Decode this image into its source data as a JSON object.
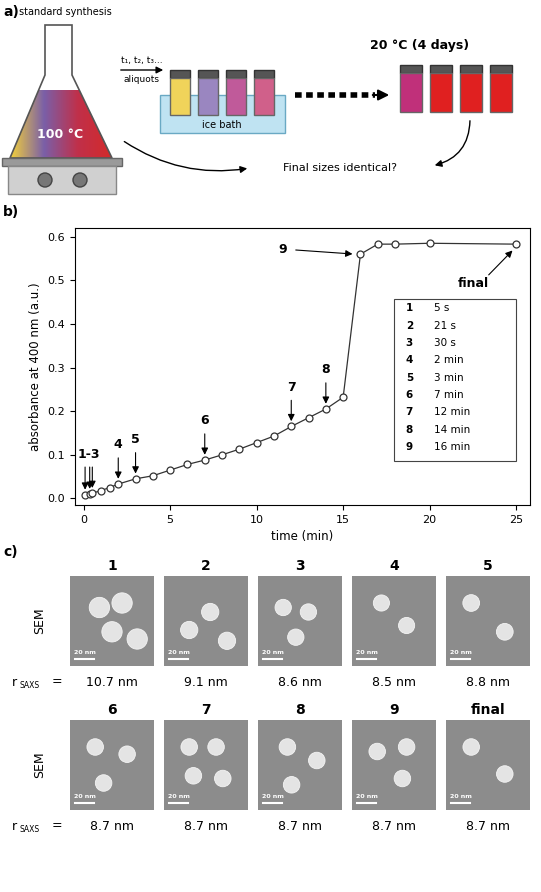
{
  "panel_labels": [
    "a)",
    "b)",
    "c)"
  ],
  "diagram": {
    "flask_label": "standard synthesis",
    "flask_temperature": "100 °C",
    "transfer_label": "t₁, t₂, t₃...",
    "transfer_sublabel": "aliquots",
    "bath_label": "ice bath",
    "aging_label": "20 °C (4 days)",
    "question": "Final sizes identical?"
  },
  "chart_data": {
    "type": "line",
    "color": "#333333",
    "marker": "circle",
    "line_style": "solid",
    "xlabel": "time (min)",
    "ylabel": "absorbance at 400 nm (a.u.)",
    "x": [
      0.083,
      0.35,
      0.5,
      1,
      1.5,
      2,
      3,
      4,
      5,
      6,
      7,
      8,
      9,
      10,
      11,
      12,
      13,
      14,
      15,
      16,
      17,
      18,
      20,
      25
    ],
    "values": [
      0.008,
      0.01,
      0.012,
      0.018,
      0.025,
      0.033,
      0.045,
      0.052,
      0.065,
      0.078,
      0.088,
      0.1,
      0.113,
      0.128,
      0.143,
      0.165,
      0.185,
      0.205,
      0.232,
      0.56,
      0.583,
      0.583,
      0.585,
      0.583
    ],
    "xlim": [
      -0.5,
      25.8
    ],
    "ylim": [
      -0.015,
      0.62
    ],
    "xticks": [
      0,
      5,
      10,
      15,
      20,
      25
    ],
    "yticks": [
      0.0,
      0.1,
      0.2,
      0.3,
      0.4,
      0.5,
      0.6
    ],
    "annotations": [
      {
        "text": "1-3",
        "x": [
          0.083,
          0.35,
          0.5
        ]
      },
      {
        "text": "4",
        "x": [
          2
        ]
      },
      {
        "text": "5",
        "x": [
          3
        ]
      },
      {
        "text": "6",
        "x": [
          7
        ]
      },
      {
        "text": "7",
        "x": [
          12
        ]
      },
      {
        "text": "8",
        "x": [
          14
        ]
      },
      {
        "text": "9",
        "x": [
          16
        ]
      },
      {
        "text": "final",
        "x": [
          25
        ]
      }
    ],
    "sample_table": [
      {
        "label": "1",
        "time": "5 s"
      },
      {
        "label": "2",
        "time": "21 s"
      },
      {
        "label": "3",
        "time": "30 s"
      },
      {
        "label": "4",
        "time": "2 min"
      },
      {
        "label": "5",
        "time": "3 min"
      },
      {
        "label": "6",
        "time": "7 min"
      },
      {
        "label": "7",
        "time": "12 min"
      },
      {
        "label": "8",
        "time": "14 min"
      },
      {
        "label": "9",
        "time": "16 min"
      }
    ]
  },
  "sem": {
    "row_label": "SEM",
    "scale_bar": "20 nm",
    "radius_symbol": "r",
    "radius_subscript": "SAXS",
    "equals": "=",
    "samples": [
      {
        "label": "1",
        "radius": 10.7,
        "radius_label": "10.7 nm"
      },
      {
        "label": "2",
        "radius": 9.1,
        "radius_label": "9.1 nm"
      },
      {
        "label": "3",
        "radius": 8.6,
        "radius_label": "8.6 nm"
      },
      {
        "label": "4",
        "radius": 8.5,
        "radius_label": "8.5 nm"
      },
      {
        "label": "5",
        "radius": 8.8,
        "radius_label": "8.8 nm"
      },
      {
        "label": "6",
        "radius": 8.7,
        "radius_label": "8.7 nm"
      },
      {
        "label": "7",
        "radius": 8.7,
        "radius_label": "8.7 nm"
      },
      {
        "label": "8",
        "radius": 8.7,
        "radius_label": "8.7 nm"
      },
      {
        "label": "9",
        "radius": 8.7,
        "radius_label": "8.7 nm"
      },
      {
        "label": "final",
        "radius": 8.7,
        "radius_label": "8.7 nm"
      }
    ]
  }
}
